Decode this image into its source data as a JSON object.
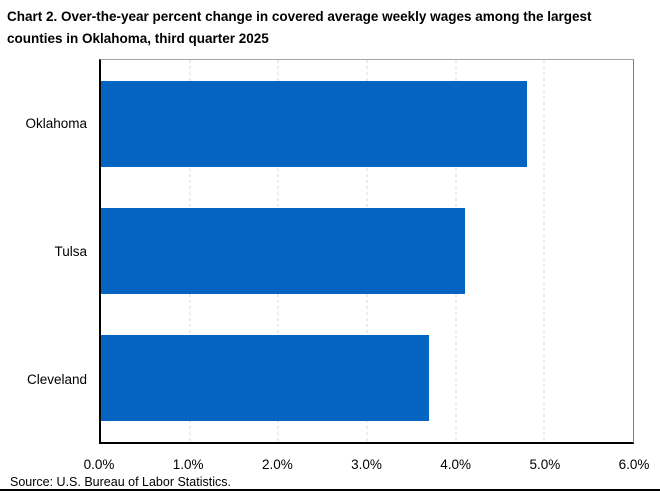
{
  "title": "Chart 2. Over-the-year percent change in covered average weekly wages among the largest counties in Oklahoma, third quarter 2025",
  "source": "Source: U.S. Bureau of Labor Statistics.",
  "colors": {
    "bar": "#0563C1",
    "gridline": "#D9D9D9",
    "axis_line": "#000000",
    "plot_border_top": "#A6A6A6",
    "plot_border_right": "#7F7F7F",
    "background": "#FFFFFF",
    "text": "#000000"
  },
  "chart_data": {
    "type": "bar",
    "orientation": "horizontal",
    "title": "Chart 2. Over-the-year percent change in covered average weekly wages among the largest counties in Oklahoma, third quarter 2025",
    "categories": [
      "Oklahoma",
      "Tulsa",
      "Cleveland"
    ],
    "values": [
      4.8,
      4.1,
      3.7
    ],
    "value_unit": "percent",
    "xlabel": "",
    "ylabel": "",
    "xlim": [
      0,
      6
    ],
    "xtick_values": [
      0,
      1,
      2,
      3,
      4,
      5,
      6
    ],
    "xtick_labels": [
      "0.0%",
      "1.0%",
      "2.0%",
      "3.0%",
      "4.0%",
      "5.0%",
      "6.0%"
    ],
    "grid": "vertical dashed gridlines at 1% intervals",
    "legend": "none"
  }
}
